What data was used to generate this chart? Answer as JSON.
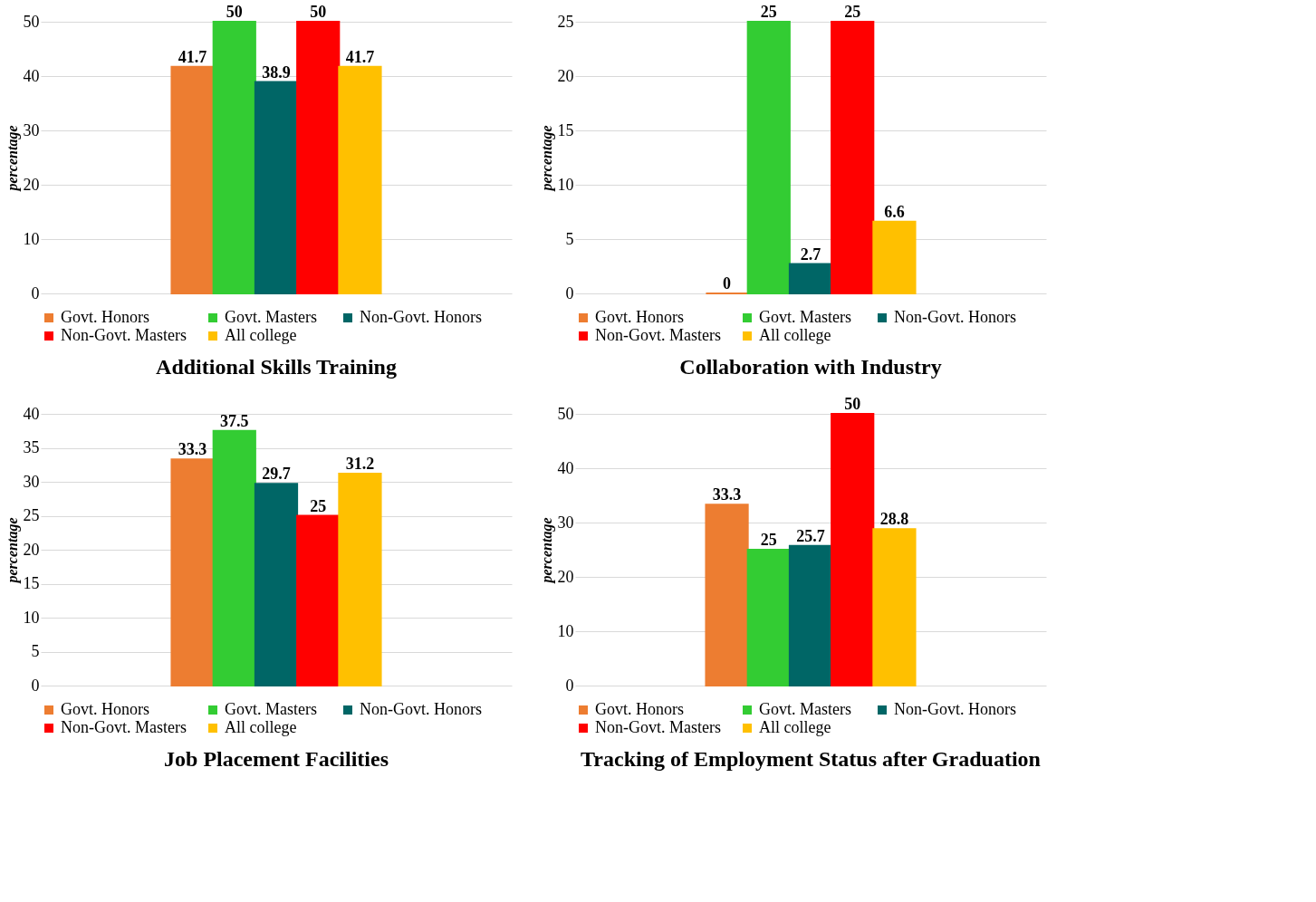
{
  "chart_data": [
    {
      "type": "bar",
      "title": "Additional Skills Training",
      "ylabel": "percentage",
      "categories": [
        null
      ],
      "ylim": [
        0,
        50
      ],
      "yticks": [
        0,
        10,
        20,
        30,
        40,
        50
      ],
      "grid": "y",
      "legend": "bottom",
      "data_labels": true,
      "series": [
        {
          "name": "Govt. Honors",
          "color": "#ed7d31",
          "values": [
            41.7
          ]
        },
        {
          "name": "Govt.  Masters",
          "color": "#33cc33",
          "values": [
            50
          ]
        },
        {
          "name": "Non-Govt.  Honors",
          "color": "#006666",
          "values": [
            38.9
          ]
        },
        {
          "name": "Non-Govt. Masters",
          "color": "#ff0000",
          "values": [
            50
          ]
        },
        {
          "name": "All college",
          "color": "#ffc000",
          "values": [
            41.7
          ]
        }
      ]
    },
    {
      "type": "bar",
      "title": "Collaboration with Industry",
      "ylabel": "percentage",
      "categories": [
        null
      ],
      "ylim": [
        0,
        25
      ],
      "yticks": [
        0,
        5,
        10,
        15,
        20,
        25
      ],
      "grid": "y",
      "legend": "bottom",
      "data_labels": true,
      "series": [
        {
          "name": "Govt. Honors",
          "color": "#ed7d31",
          "values": [
            0
          ]
        },
        {
          "name": "Govt.  Masters",
          "color": "#33cc33",
          "values": [
            25
          ]
        },
        {
          "name": "Non-Govt.  Honors",
          "color": "#006666",
          "values": [
            2.7
          ]
        },
        {
          "name": "Non-Govt. Masters",
          "color": "#ff0000",
          "values": [
            25
          ]
        },
        {
          "name": "All college",
          "color": "#ffc000",
          "values": [
            6.6
          ]
        }
      ]
    },
    {
      "type": "bar",
      "title": "Job Placement Facilities",
      "ylabel": "percentage",
      "categories": [
        null
      ],
      "ylim": [
        0,
        40
      ],
      "yticks": [
        0,
        5,
        10,
        15,
        20,
        25,
        30,
        35,
        40
      ],
      "grid": "y",
      "legend": "bottom",
      "data_labels": true,
      "series": [
        {
          "name": "Govt. Honors",
          "color": "#ed7d31",
          "values": [
            33.3
          ]
        },
        {
          "name": "Govt.  Masters",
          "color": "#33cc33",
          "values": [
            37.5
          ]
        },
        {
          "name": "Non-Govt.  Honors",
          "color": "#006666",
          "values": [
            29.7
          ]
        },
        {
          "name": "Non-Govt. Masters",
          "color": "#ff0000",
          "values": [
            25
          ]
        },
        {
          "name": "All college",
          "color": "#ffc000",
          "values": [
            31.2
          ]
        }
      ]
    },
    {
      "type": "bar",
      "title": "Tracking of Employment Status after Graduation",
      "ylabel": "percentage",
      "categories": [
        null
      ],
      "ylim": [
        0,
        50
      ],
      "yticks": [
        0,
        10,
        20,
        30,
        40,
        50
      ],
      "grid": "y",
      "legend": "bottom",
      "data_labels": true,
      "series": [
        {
          "name": "Govt. Honors",
          "color": "#ed7d31",
          "values": [
            33.3
          ]
        },
        {
          "name": "Govt.  Masters",
          "color": "#33cc33",
          "values": [
            25
          ]
        },
        {
          "name": "Non-Govt.  Honors",
          "color": "#006666",
          "values": [
            25.7
          ]
        },
        {
          "name": "Non-Govt. Masters",
          "color": "#ff0000",
          "values": [
            50
          ]
        },
        {
          "name": "All college",
          "color": "#ffc000",
          "values": [
            28.8
          ]
        }
      ]
    }
  ]
}
